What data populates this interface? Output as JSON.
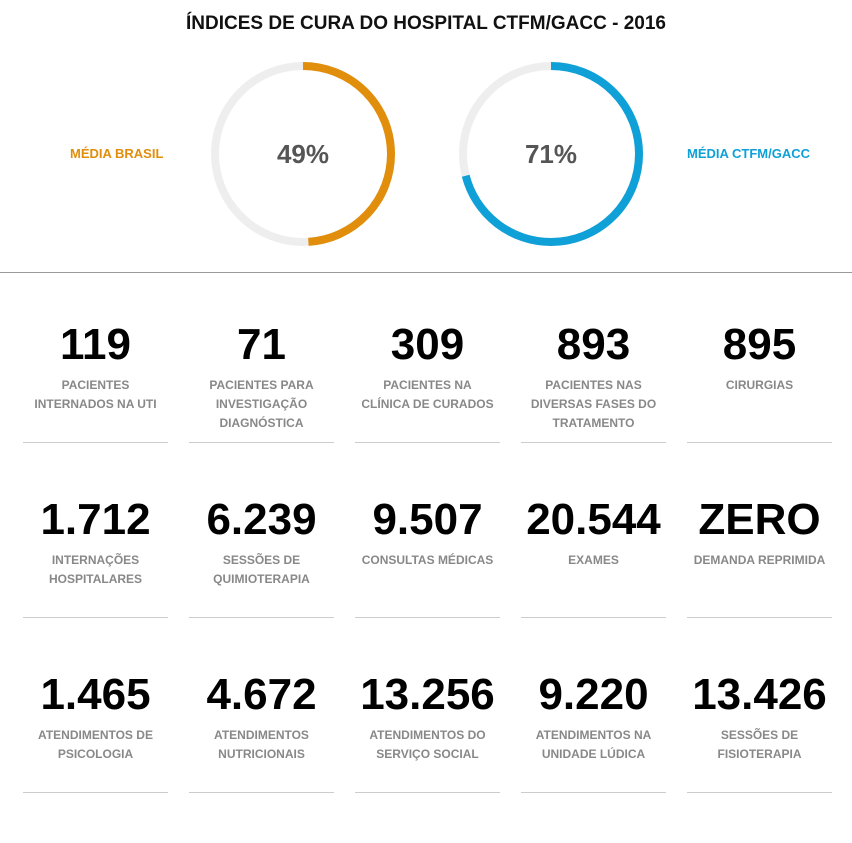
{
  "title": "ÍNDICES DE CURA DO HOSPITAL CTFM/GACC - 2016",
  "gauges": [
    {
      "label": "MÉDIA BRASIL",
      "value": 49,
      "display": "49%",
      "color": "#e08e0b"
    },
    {
      "label": "MÉDIA CTFM/GACC",
      "value": 71,
      "display": "71%",
      "color": "#0fa0d8"
    }
  ],
  "stats": [
    {
      "value": "119",
      "label": "PACIENTES INTERNADOS NA UTI"
    },
    {
      "value": "71",
      "label": "PACIENTES PARA INVESTIGAÇÃO DIAGNÓSTICA"
    },
    {
      "value": "309",
      "label": "PACIENTES NA CLÍNICA DE CURADOS"
    },
    {
      "value": "893",
      "label": "PACIENTES NAS DIVERSAS FASES DO TRATAMENTO"
    },
    {
      "value": "895",
      "label": "CIRURGIAS"
    },
    {
      "value": "1.712",
      "label": "INTERNAÇÕES HOSPITALARES"
    },
    {
      "value": "6.239",
      "label": "SESSÕES DE QUIMIOTERAPIA"
    },
    {
      "value": "9.507",
      "label": "CONSULTAS MÉDICAS"
    },
    {
      "value": "20.544",
      "label": "EXAMES"
    },
    {
      "value": "ZERO",
      "label": "DEMANDA REPRIMIDA"
    },
    {
      "value": "1.465",
      "label": "ATENDIMENTOS DE PSICOLOGIA"
    },
    {
      "value": "4.672",
      "label": "ATENDIMENTOS NUTRICIONAIS"
    },
    {
      "value": "13.256",
      "label": "ATENDIMENTOS DO SERVIÇO SOCIAL"
    },
    {
      "value": "9.220",
      "label": "ATENDIMENTOS NA UNIDADE LÚDICA"
    },
    {
      "value": "13.426",
      "label": "SESSÕES DE FISIOTERAPIA"
    }
  ]
}
